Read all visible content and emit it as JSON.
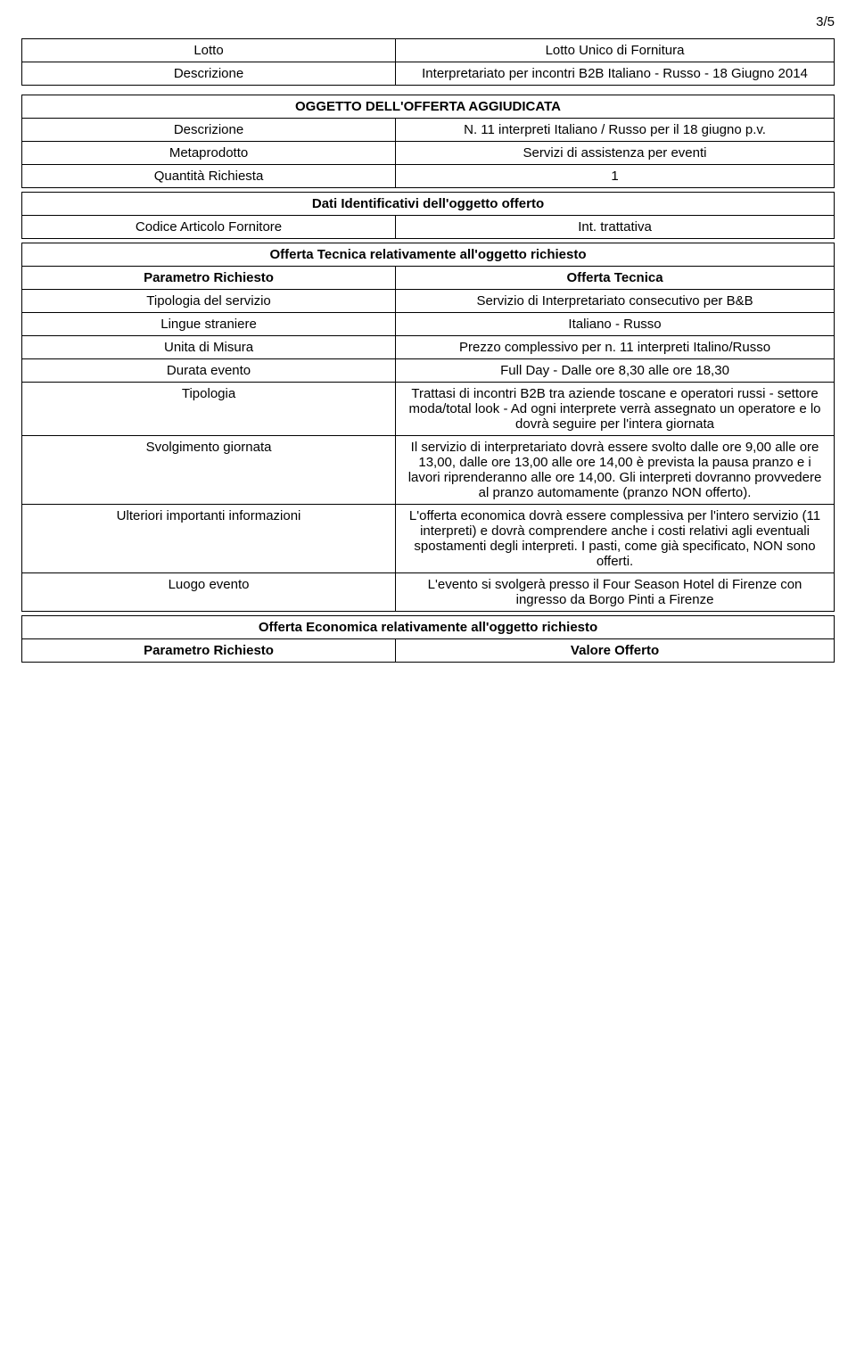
{
  "page_number": "3/5",
  "lotto_table": {
    "rows": [
      {
        "label": "Lotto",
        "value": "Lotto Unico di Fornitura"
      },
      {
        "label": "Descrizione",
        "value": "Interpretariato per incontri B2B Italiano - Russo - 18 Giugno 2014"
      }
    ]
  },
  "oggetto_table": {
    "header": "OGGETTO DELL'OFFERTA AGGIUDICATA",
    "rows": [
      {
        "label": "Descrizione",
        "value": "N. 11 interpreti Italiano / Russo per il 18 giugno p.v."
      },
      {
        "label": "Metaprodotto",
        "value": "Servizi di assistenza per eventi"
      },
      {
        "label": "Quantità Richiesta",
        "value": "1"
      }
    ],
    "dati_header": "Dati Identificativi dell'oggetto offerto",
    "dati_rows": [
      {
        "label": "Codice Articolo Fornitore",
        "value": "Int. trattativa"
      }
    ],
    "tecnica_header": "Offerta Tecnica relativamente all'oggetto richiesto",
    "tecnica_subheader": {
      "label": "Parametro Richiesto",
      "value": "Offerta Tecnica"
    },
    "tecnica_rows": [
      {
        "label": "Tipologia del servizio",
        "value": "Servizio di Interpretariato consecutivo per B&B"
      },
      {
        "label": "Lingue straniere",
        "value": "Italiano - Russo"
      },
      {
        "label": "Unita di Misura",
        "value": "Prezzo complessivo per n. 11 interpreti Italino/Russo"
      },
      {
        "label": "Durata evento",
        "value": "Full Day - Dalle ore 8,30 alle ore 18,30"
      },
      {
        "label": "Tipologia",
        "value": "Trattasi di incontri B2B tra aziende toscane e operatori russi - settore moda/total look - Ad ogni interprete verrà assegnato un operatore e lo dovrà seguire per l'intera giornata"
      },
      {
        "label": "Svolgimento giornata",
        "value": "Il servizio di interpretariato dovrà essere svolto dalle ore 9,00 alle ore 13,00, dalle ore 13,00 alle ore 14,00 è prevista la pausa pranzo e i lavori riprenderanno alle ore 14,00. Gli interpreti dovranno provvedere al pranzo automamente (pranzo NON offerto)."
      },
      {
        "label": "Ulteriori importanti informazioni",
        "value": "L'offerta economica dovrà essere complessiva per l'intero servizio (11 interpreti) e dovrà comprendere anche i costi relativi agli eventuali spostamenti degli interpreti. I pasti, come già specificato, NON sono offerti."
      },
      {
        "label": "Luogo evento",
        "value": "L'evento si svolgerà presso il Four Season Hotel di Firenze con ingresso da Borgo Pinti a Firenze"
      }
    ],
    "economica_header": "Offerta Economica relativamente all'oggetto richiesto",
    "economica_subheader": {
      "label": "Parametro Richiesto",
      "value": "Valore Offerto"
    }
  }
}
